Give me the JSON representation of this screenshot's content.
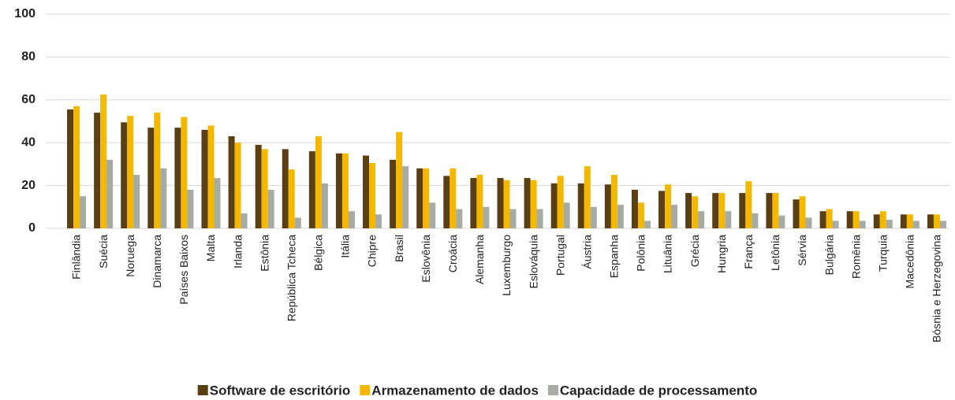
{
  "chart_data": {
    "type": "bar",
    "categories": [
      "Finlândia",
      "Suécia",
      "Noruega",
      "Dinamarca",
      "Países Baixos",
      "Malta",
      "Irlanda",
      "Estônia",
      "República Tcheca",
      "Bélgica",
      "Itália",
      "Chipre",
      "Brasil",
      "Eslovênia",
      "Croácia",
      "Alemanha",
      "Luxemburgo",
      "Eslováquia",
      "Portugal",
      "Áustria",
      "Espanha",
      "Polônia",
      "Lituânia",
      "Grécia",
      "Hungria",
      "França",
      "Letônia",
      "Sérvia",
      "Bulgária",
      "Romênia",
      "Turquia",
      "Macedônia",
      "Bósnia e Herzegovina"
    ],
    "series": [
      {
        "name": "Software de escritório",
        "color": "#5a3e14",
        "values": [
          55.5,
          54,
          49.5,
          47,
          47,
          46,
          43,
          39,
          37,
          36,
          35,
          34,
          32,
          28,
          24.5,
          23.5,
          23.5,
          23.5,
          21,
          21,
          20.5,
          18,
          17.5,
          16.5,
          16.5,
          16.5,
          16.5,
          13.5,
          8,
          8,
          6.5,
          6.5,
          6.5
        ]
      },
      {
        "name": "Armazenamento de dados",
        "color": "#f5b800",
        "values": [
          57,
          62.5,
          52.5,
          54,
          52,
          48,
          40,
          37,
          27.5,
          43,
          35,
          30.5,
          45,
          28,
          28,
          25,
          22.5,
          22.5,
          24.5,
          29,
          25,
          12,
          20.5,
          15,
          16.5,
          22,
          16.5,
          15,
          9,
          8,
          8,
          6.5,
          6.5
        ]
      },
      {
        "name": "Capacidade de processamento",
        "color": "#a6aba4",
        "values": [
          15,
          32,
          25,
          28,
          18,
          23.5,
          7,
          18,
          5,
          21,
          8,
          6.5,
          29,
          12,
          9,
          10,
          9,
          9,
          12,
          10,
          11,
          3.5,
          11,
          8,
          8,
          7,
          6,
          5,
          3.5,
          3.5,
          4,
          3.5,
          3.5
        ]
      }
    ],
    "ylim": [
      0,
      100
    ],
    "yticks": [
      0,
      20,
      40,
      60,
      80,
      100
    ],
    "grid": true,
    "legend": "bottom"
  }
}
